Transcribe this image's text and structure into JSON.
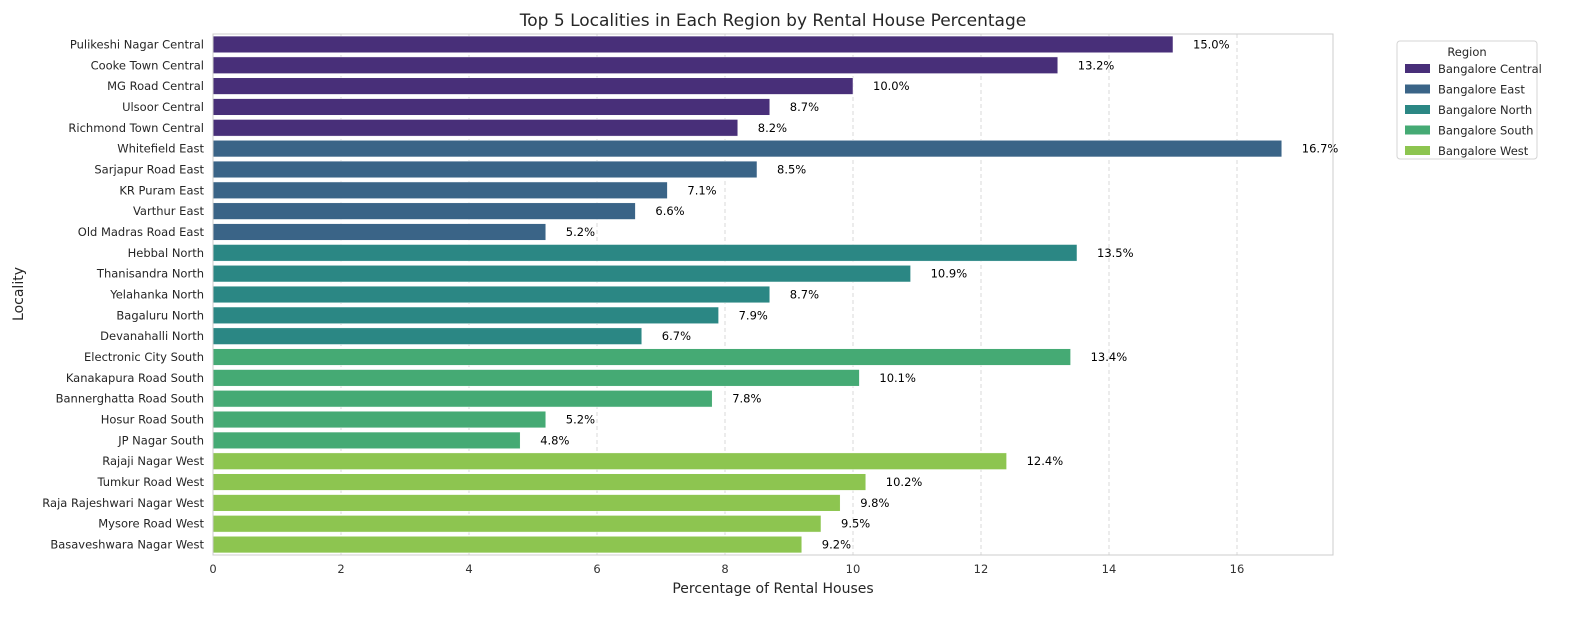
{
  "chart_data": {
    "type": "bar",
    "orientation": "horizontal",
    "title": "Top 5 Localities in Each Region by Rental House Percentage",
    "xlabel": "Percentage of Rental Houses",
    "ylabel": "Locality",
    "xlim": [
      0,
      17.5
    ],
    "xticks": [
      "0",
      "2",
      "4",
      "6",
      "8",
      "10",
      "12",
      "14",
      "16"
    ],
    "grid": "vertical dashed",
    "legend": {
      "title": "Region",
      "placement": "outside-top-right",
      "entries": [
        {
          "label": "Bangalore Central",
          "color": "#482F79"
        },
        {
          "label": "Bangalore East",
          "color": "#3A6487"
        },
        {
          "label": "Bangalore North",
          "color": "#2B8784"
        },
        {
          "label": "Bangalore South",
          "color": "#45AA74"
        },
        {
          "label": "Bangalore West",
          "color": "#8DC550"
        }
      ]
    },
    "bars": [
      {
        "category": "Pulikeshi Nagar Central",
        "value": 15.0,
        "label": "15.0%",
        "region": 0
      },
      {
        "category": "Cooke Town Central",
        "value": 13.2,
        "label": "13.2%",
        "region": 0
      },
      {
        "category": "MG Road Central",
        "value": 10.0,
        "label": "10.0%",
        "region": 0
      },
      {
        "category": "Ulsoor Central",
        "value": 8.7,
        "label": "8.7%",
        "region": 0
      },
      {
        "category": "Richmond Town Central",
        "value": 8.2,
        "label": "8.2%",
        "region": 0
      },
      {
        "category": "Whitefield East",
        "value": 16.7,
        "label": "16.7%",
        "region": 1
      },
      {
        "category": "Sarjapur Road East",
        "value": 8.5,
        "label": "8.5%",
        "region": 1
      },
      {
        "category": "KR Puram East",
        "value": 7.1,
        "label": "7.1%",
        "region": 1
      },
      {
        "category": "Varthur East",
        "value": 6.6,
        "label": "6.6%",
        "region": 1
      },
      {
        "category": "Old Madras Road East",
        "value": 5.2,
        "label": "5.2%",
        "region": 1
      },
      {
        "category": "Hebbal North",
        "value": 13.5,
        "label": "13.5%",
        "region": 2
      },
      {
        "category": "Thanisandra North",
        "value": 10.9,
        "label": "10.9%",
        "region": 2
      },
      {
        "category": "Yelahanka North",
        "value": 8.7,
        "label": "8.7%",
        "region": 2
      },
      {
        "category": "Bagaluru North",
        "value": 7.9,
        "label": "7.9%",
        "region": 2
      },
      {
        "category": "Devanahalli North",
        "value": 6.7,
        "label": "6.7%",
        "region": 2
      },
      {
        "category": "Electronic City South",
        "value": 13.4,
        "label": "13.4%",
        "region": 3
      },
      {
        "category": "Kanakapura Road South",
        "value": 10.1,
        "label": "10.1%",
        "region": 3
      },
      {
        "category": "Bannerghatta Road South",
        "value": 7.8,
        "label": "7.8%",
        "region": 3
      },
      {
        "category": "Hosur Road South",
        "value": 5.2,
        "label": "5.2%",
        "region": 3
      },
      {
        "category": "JP Nagar South",
        "value": 4.8,
        "label": "4.8%",
        "region": 3
      },
      {
        "category": "Rajaji Nagar West",
        "value": 12.4,
        "label": "12.4%",
        "region": 4
      },
      {
        "category": "Tumkur Road West",
        "value": 10.2,
        "label": "10.2%",
        "region": 4
      },
      {
        "category": "Raja Rajeshwari Nagar West",
        "value": 9.8,
        "label": "9.8%",
        "region": 4
      },
      {
        "category": "Mysore Road West",
        "value": 9.5,
        "label": "9.5%",
        "region": 4
      },
      {
        "category": "Basaveshwara Nagar West",
        "value": 9.2,
        "label": "9.2%",
        "region": 4
      }
    ]
  }
}
